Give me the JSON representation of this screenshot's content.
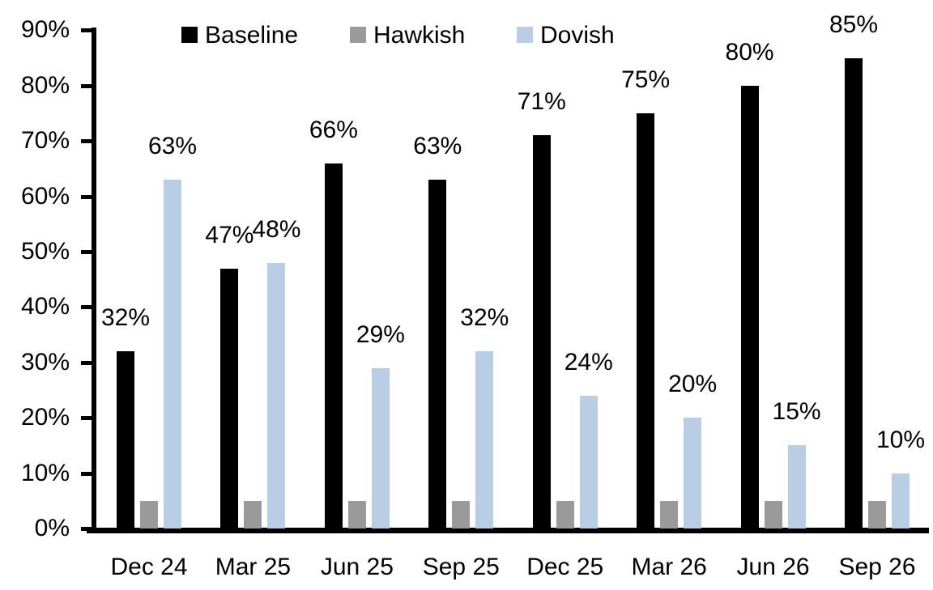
{
  "chart_data": {
    "type": "bar",
    "title": "",
    "categories": [
      "Dec 24",
      "Mar 25",
      "Jun 25",
      "Sep 25",
      "Dec 25",
      "Mar 26",
      "Jun 26",
      "Sep 26"
    ],
    "series": [
      {
        "name": "Baseline",
        "color": "#000000",
        "values": [
          32,
          47,
          66,
          63,
          71,
          75,
          80,
          85
        ],
        "data_labels": [
          "32%",
          "47%",
          "66%",
          "63%",
          "71%",
          "75%",
          "80%",
          "85%"
        ]
      },
      {
        "name": "Hawkish",
        "color": "#9a9a9a",
        "values": [
          5,
          5,
          5,
          5,
          5,
          5,
          5,
          5
        ],
        "data_labels": [
          "",
          "",
          "",
          "",
          "",
          "",
          "",
          ""
        ]
      },
      {
        "name": "Dovish",
        "color": "#b9cde5",
        "values": [
          63,
          48,
          29,
          32,
          24,
          20,
          15,
          10
        ],
        "data_labels": [
          "63%",
          "48%",
          "29%",
          "32%",
          "24%",
          "20%",
          "15%",
          "10%"
        ]
      }
    ],
    "y_axis": {
      "min": 0,
      "max": 90,
      "step": 10,
      "tick_labels": [
        "0%",
        "10%",
        "20%",
        "30%",
        "40%",
        "50%",
        "60%",
        "70%",
        "80%",
        "90%"
      ]
    },
    "legend": {
      "position": "top",
      "entries": [
        "Baseline",
        "Hawkish",
        "Dovish"
      ]
    },
    "grid": false,
    "background": "#ffffff"
  }
}
